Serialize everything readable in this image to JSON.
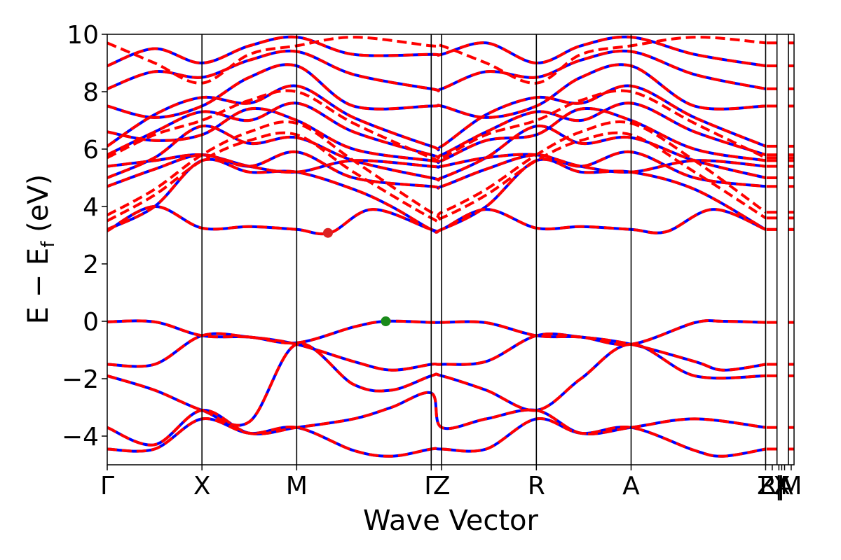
{
  "chart_data": {
    "type": "line",
    "xlabel": "Wave Vector",
    "ylabel_main": "E − E",
    "ylabel_sub": "f",
    "ylabel_unit": " (eV)",
    "ylim": [
      -5,
      10
    ],
    "yticks": [
      -4,
      -2,
      0,
      2,
      4,
      6,
      8,
      10
    ],
    "ytick_labels": [
      "−4",
      "−2",
      "0",
      "2",
      "4",
      "6",
      "8",
      "10"
    ],
    "xlim": [
      0,
      7.25
    ],
    "kpoints": [
      {
        "label": "Γ",
        "x": 0.0
      },
      {
        "label": "X",
        "x": 1.0
      },
      {
        "label": "M",
        "x": 2.0
      },
      {
        "label": "Γ",
        "x": 3.42
      },
      {
        "label": "Z",
        "x": 3.53
      },
      {
        "label": "R",
        "x": 4.53
      },
      {
        "label": "A",
        "x": 5.53
      },
      {
        "label": "Z",
        "x": 6.95
      },
      {
        "label": "R|",
        "x": 7.02
      },
      {
        "label": "|",
        "x": 7.09
      },
      {
        "label": "X",
        "x": 7.12
      },
      {
        "label": "A",
        "x": 7.15
      },
      {
        "label": "M",
        "x": 7.22
      }
    ],
    "vlines": [
      1.0,
      2.0,
      3.42,
      3.53,
      4.53,
      5.53,
      6.95,
      7.07,
      7.19
    ],
    "series": [
      {
        "style": "solid",
        "color": "#0000ff"
      },
      {
        "style": "dashed",
        "color": "#ff0000"
      }
    ],
    "markers": [
      {
        "x": 2.33,
        "y": 3.08,
        "color": "#dd2222"
      },
      {
        "x": 2.94,
        "y": 0.0,
        "color": "#1a8a1a"
      }
    ],
    "valence_bands": [
      [
        [
          0,
          -0.02
        ],
        [
          0.5,
          -0.02
        ],
        [
          1.0,
          -0.5
        ],
        [
          1.5,
          -0.55
        ],
        [
          2.0,
          -0.75
        ],
        [
          2.6,
          -0.2
        ],
        [
          2.94,
          0.0
        ],
        [
          3.42,
          -0.04
        ],
        [
          3.53,
          -0.04
        ],
        [
          4.0,
          -0.05
        ],
        [
          4.53,
          -0.5
        ],
        [
          5.0,
          -0.55
        ],
        [
          5.53,
          -0.8
        ],
        [
          6.2,
          -0.05
        ],
        [
          6.5,
          0.0
        ],
        [
          6.95,
          -0.04
        ]
      ],
      [
        [
          0,
          -1.5
        ],
        [
          0.5,
          -1.5
        ],
        [
          1.0,
          -0.5
        ],
        [
          1.5,
          -0.55
        ],
        [
          2.0,
          -0.8
        ],
        [
          2.6,
          -1.4
        ],
        [
          3.0,
          -1.7
        ],
        [
          3.42,
          -1.5
        ],
        [
          3.53,
          -1.5
        ],
        [
          4.0,
          -1.4
        ],
        [
          4.53,
          -0.5
        ],
        [
          5.0,
          -0.55
        ],
        [
          5.53,
          -0.8
        ],
        [
          6.2,
          -1.4
        ],
        [
          6.5,
          -1.7
        ],
        [
          6.95,
          -1.5
        ]
      ],
      [
        [
          0,
          -1.9
        ],
        [
          0.5,
          -2.4
        ],
        [
          1.0,
          -3.1
        ],
        [
          1.5,
          -3.5
        ],
        [
          2.0,
          -0.8
        ],
        [
          2.6,
          -2.2
        ],
        [
          3.0,
          -2.4
        ],
        [
          3.42,
          -1.9
        ],
        [
          3.53,
          -1.9
        ],
        [
          4.0,
          -2.4
        ],
        [
          4.53,
          -3.1
        ],
        [
          5.0,
          -2.0
        ],
        [
          5.53,
          -0.8
        ],
        [
          6.2,
          -1.9
        ],
        [
          6.95,
          -1.9
        ]
      ],
      [
        [
          0,
          -3.7
        ],
        [
          0.5,
          -4.3
        ],
        [
          1.0,
          -3.1
        ],
        [
          1.5,
          -3.9
        ],
        [
          2.0,
          -3.7
        ],
        [
          2.6,
          -3.4
        ],
        [
          3.0,
          -3.0
        ],
        [
          3.42,
          -2.5
        ],
        [
          3.53,
          -3.7
        ],
        [
          4.0,
          -3.4
        ],
        [
          4.53,
          -3.1
        ],
        [
          5.0,
          -3.9
        ],
        [
          5.53,
          -3.7
        ],
        [
          6.2,
          -3.4
        ],
        [
          6.95,
          -3.7
        ]
      ],
      [
        [
          0,
          -4.45
        ],
        [
          0.5,
          -4.45
        ],
        [
          1.0,
          -3.4
        ],
        [
          1.5,
          -3.9
        ],
        [
          2.0,
          -3.7
        ],
        [
          2.6,
          -4.5
        ],
        [
          3.0,
          -4.7
        ],
        [
          3.42,
          -4.45
        ],
        [
          3.53,
          -4.45
        ],
        [
          4.0,
          -4.45
        ],
        [
          4.53,
          -3.4
        ],
        [
          5.0,
          -3.9
        ],
        [
          5.53,
          -3.7
        ],
        [
          6.2,
          -4.5
        ],
        [
          6.5,
          -4.7
        ],
        [
          6.95,
          -4.45
        ]
      ]
    ],
    "conduction_bands": [
      [
        [
          0,
          3.15
        ],
        [
          0.5,
          4.0
        ],
        [
          1.0,
          3.25
        ],
        [
          1.5,
          3.3
        ],
        [
          2.0,
          3.2
        ],
        [
          2.35,
          3.08
        ],
        [
          2.8,
          3.9
        ],
        [
          3.42,
          3.2
        ],
        [
          3.53,
          3.2
        ],
        [
          4.0,
          3.9
        ],
        [
          4.53,
          3.25
        ],
        [
          5.0,
          3.3
        ],
        [
          5.53,
          3.2
        ],
        [
          5.9,
          3.12
        ],
        [
          6.4,
          3.9
        ],
        [
          6.95,
          3.2
        ]
      ],
      [
        [
          0,
          3.2
        ],
        [
          0.5,
          4.0
        ],
        [
          1.0,
          5.6
        ],
        [
          1.5,
          5.2
        ],
        [
          2.0,
          5.2
        ],
        [
          2.6,
          4.6
        ],
        [
          3.0,
          4.0
        ],
        [
          3.42,
          3.2
        ],
        [
          3.53,
          3.2
        ],
        [
          4.0,
          4.0
        ],
        [
          4.53,
          5.6
        ],
        [
          5.0,
          5.2
        ],
        [
          5.53,
          5.2
        ],
        [
          6.2,
          4.6
        ],
        [
          6.95,
          3.2
        ]
      ],
      [
        [
          0,
          5.4
        ],
        [
          0.5,
          5.6
        ],
        [
          1.0,
          5.8
        ],
        [
          1.5,
          5.4
        ],
        [
          2.0,
          5.2
        ],
        [
          2.6,
          5.6
        ],
        [
          3.42,
          5.4
        ],
        [
          3.53,
          5.4
        ],
        [
          4.0,
          5.7
        ],
        [
          4.53,
          5.8
        ],
        [
          5.0,
          5.4
        ],
        [
          5.53,
          5.2
        ],
        [
          6.2,
          5.6
        ],
        [
          6.95,
          5.4
        ]
      ],
      [
        [
          0,
          6.6
        ],
        [
          0.5,
          6.3
        ],
        [
          1.0,
          6.5
        ],
        [
          1.5,
          7.4
        ],
        [
          2.0,
          7.0
        ],
        [
          2.6,
          6.0
        ],
        [
          3.42,
          5.6
        ],
        [
          3.53,
          5.6
        ],
        [
          4.0,
          6.3
        ],
        [
          4.53,
          6.5
        ],
        [
          5.0,
          7.4
        ],
        [
          5.53,
          7.0
        ],
        [
          6.2,
          6.0
        ],
        [
          6.95,
          5.6
        ]
      ],
      [
        [
          0,
          7.5
        ],
        [
          0.5,
          7.1
        ],
        [
          1.0,
          7.5
        ],
        [
          1.5,
          8.5
        ],
        [
          2.0,
          8.9
        ],
        [
          2.6,
          7.5
        ],
        [
          3.42,
          7.5
        ],
        [
          3.53,
          7.5
        ],
        [
          4.0,
          7.1
        ],
        [
          4.53,
          7.5
        ],
        [
          5.0,
          8.5
        ],
        [
          5.53,
          8.9
        ],
        [
          6.2,
          7.5
        ],
        [
          6.95,
          7.5
        ]
      ],
      [
        [
          0,
          8.9
        ],
        [
          0.5,
          9.5
        ],
        [
          1.0,
          9.0
        ],
        [
          1.5,
          9.6
        ],
        [
          2.0,
          9.9
        ],
        [
          2.6,
          9.3
        ],
        [
          3.42,
          9.3
        ],
        [
          3.53,
          9.3
        ],
        [
          4.0,
          9.7
        ],
        [
          4.53,
          9.0
        ],
        [
          5.0,
          9.6
        ],
        [
          5.53,
          9.9
        ],
        [
          6.2,
          9.3
        ],
        [
          6.95,
          8.9
        ]
      ],
      [
        [
          0,
          4.7
        ],
        [
          0.5,
          5.3
        ],
        [
          1.0,
          5.8
        ],
        [
          1.5,
          5.4
        ],
        [
          2.0,
          5.9
        ],
        [
          2.6,
          5.0
        ],
        [
          3.42,
          4.7
        ],
        [
          3.53,
          4.7
        ],
        [
          4.0,
          5.3
        ],
        [
          4.53,
          5.8
        ],
        [
          5.0,
          5.4
        ],
        [
          5.53,
          5.9
        ],
        [
          6.2,
          5.0
        ],
        [
          6.95,
          4.7
        ]
      ],
      [
        [
          0,
          5.0
        ],
        [
          0.5,
          5.7
        ],
        [
          1.0,
          6.8
        ],
        [
          1.5,
          6.2
        ],
        [
          2.0,
          6.4
        ],
        [
          2.6,
          5.6
        ],
        [
          3.42,
          5.0
        ],
        [
          3.53,
          5.0
        ],
        [
          4.0,
          5.7
        ],
        [
          4.53,
          6.8
        ],
        [
          5.0,
          6.2
        ],
        [
          5.53,
          6.4
        ],
        [
          6.2,
          5.6
        ],
        [
          6.95,
          5.0
        ]
      ],
      [
        [
          0,
          5.8
        ],
        [
          0.5,
          6.6
        ],
        [
          1.0,
          7.3
        ],
        [
          1.5,
          7.0
        ],
        [
          2.0,
          7.6
        ],
        [
          2.6,
          6.6
        ],
        [
          3.42,
          5.8
        ],
        [
          3.53,
          5.8
        ],
        [
          4.0,
          6.6
        ],
        [
          4.53,
          7.3
        ],
        [
          5.0,
          7.0
        ],
        [
          5.53,
          7.6
        ],
        [
          6.2,
          6.6
        ],
        [
          6.95,
          5.8
        ]
      ],
      [
        [
          0,
          6.1
        ],
        [
          0.5,
          7.2
        ],
        [
          1.0,
          7.8
        ],
        [
          1.5,
          7.6
        ],
        [
          2.0,
          8.2
        ],
        [
          2.6,
          7.1
        ],
        [
          3.42,
          6.1
        ],
        [
          3.53,
          6.1
        ],
        [
          4.0,
          7.2
        ],
        [
          4.53,
          7.8
        ],
        [
          5.0,
          7.6
        ],
        [
          5.53,
          8.2
        ],
        [
          6.2,
          7.1
        ],
        [
          6.95,
          6.1
        ]
      ],
      [
        [
          0,
          8.1
        ],
        [
          0.5,
          8.7
        ],
        [
          1.0,
          8.5
        ],
        [
          1.5,
          9.1
        ],
        [
          2.0,
          9.4
        ],
        [
          2.6,
          8.6
        ],
        [
          3.42,
          8.1
        ],
        [
          3.53,
          8.1
        ],
        [
          4.0,
          8.7
        ],
        [
          4.53,
          8.5
        ],
        [
          5.0,
          9.1
        ],
        [
          5.53,
          9.4
        ],
        [
          6.2,
          8.6
        ],
        [
          6.95,
          8.1
        ]
      ]
    ],
    "dashed_only_bands": [
      [
        [
          0,
          3.5
        ],
        [
          0.5,
          4.4
        ],
        [
          1.0,
          5.6
        ],
        [
          1.5,
          6.3
        ],
        [
          2.0,
          6.5
        ],
        [
          2.6,
          5.2
        ],
        [
          3.42,
          3.6
        ],
        [
          3.53,
          3.6
        ],
        [
          4.0,
          4.4
        ],
        [
          4.53,
          5.6
        ],
        [
          5.0,
          6.3
        ],
        [
          5.53,
          6.5
        ],
        [
          6.2,
          5.2
        ],
        [
          6.95,
          3.6
        ]
      ],
      [
        [
          0,
          3.7
        ],
        [
          0.5,
          4.6
        ],
        [
          1.0,
          5.8
        ],
        [
          1.5,
          6.6
        ],
        [
          2.0,
          6.9
        ],
        [
          2.6,
          5.6
        ],
        [
          3.42,
          3.8
        ],
        [
          3.53,
          3.8
        ],
        [
          4.0,
          4.6
        ],
        [
          4.53,
          5.8
        ],
        [
          5.0,
          6.6
        ],
        [
          5.53,
          6.9
        ],
        [
          6.2,
          5.6
        ],
        [
          6.95,
          3.8
        ]
      ],
      [
        [
          0,
          5.7
        ],
        [
          0.5,
          6.5
        ],
        [
          1.0,
          7.0
        ],
        [
          1.5,
          7.7
        ],
        [
          2.0,
          8.0
        ],
        [
          2.6,
          6.9
        ],
        [
          3.42,
          5.7
        ],
        [
          3.53,
          5.7
        ],
        [
          4.0,
          6.5
        ],
        [
          4.53,
          7.0
        ],
        [
          5.0,
          7.7
        ],
        [
          5.53,
          8.0
        ],
        [
          6.2,
          6.9
        ],
        [
          6.95,
          5.7
        ]
      ],
      [
        [
          0,
          9.7
        ],
        [
          0.5,
          9.0
        ],
        [
          1.0,
          8.3
        ],
        [
          1.5,
          9.3
        ],
        [
          2.0,
          9.6
        ],
        [
          2.6,
          9.9
        ],
        [
          3.42,
          9.6
        ],
        [
          3.53,
          9.6
        ],
        [
          4.0,
          9.0
        ],
        [
          4.53,
          8.3
        ],
        [
          5.0,
          9.3
        ],
        [
          5.53,
          9.6
        ],
        [
          6.2,
          9.9
        ],
        [
          6.95,
          9.7
        ]
      ]
    ]
  }
}
